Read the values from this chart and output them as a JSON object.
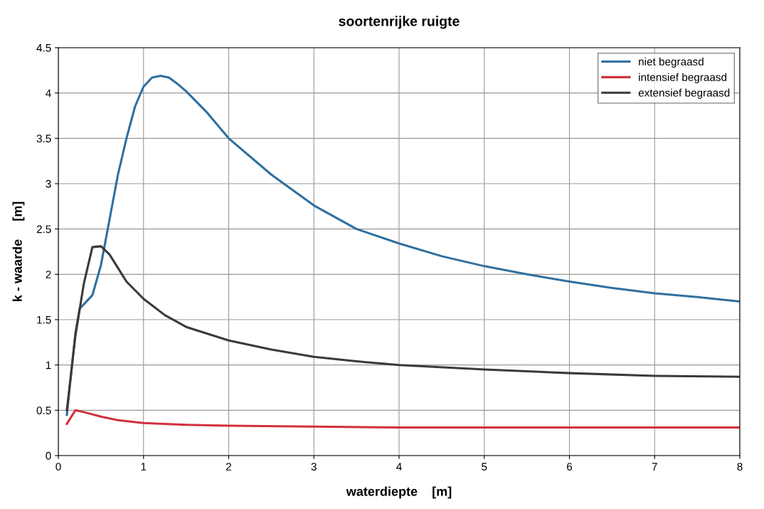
{
  "chart_data": {
    "type": "line",
    "title": "soortenrijke ruigte",
    "xlabel": "waterdiepte    [m]",
    "ylabel": "k - waarde     [m]",
    "xlim": [
      0,
      8
    ],
    "xticks": [
      0,
      1,
      2,
      3,
      4,
      5,
      6,
      7,
      8
    ],
    "ylim": [
      0,
      4.5
    ],
    "yticks": [
      0,
      0.5,
      1,
      1.5,
      2,
      2.5,
      3,
      3.5,
      4,
      4.5
    ],
    "grid": true,
    "legend": "top right",
    "series": [
      {
        "name": "niet begraasd",
        "color": "#2f6f9f",
        "x": [
          0.1,
          0.2,
          0.25,
          0.4,
          0.5,
          0.6,
          0.7,
          0.8,
          0.9,
          1.0,
          1.1,
          1.2,
          1.3,
          1.4,
          1.5,
          1.75,
          2,
          2.5,
          3,
          3.5,
          4,
          4.5,
          5,
          5.5,
          6,
          6.5,
          7,
          7.5,
          8
        ],
        "values": [
          0.45,
          1.35,
          1.62,
          1.77,
          2.1,
          2.6,
          3.1,
          3.5,
          3.85,
          4.07,
          4.17,
          4.19,
          4.17,
          4.1,
          4.02,
          3.78,
          3.5,
          3.1,
          2.76,
          2.5,
          2.34,
          2.2,
          2.09,
          2.0,
          1.92,
          1.85,
          1.79,
          1.75,
          1.7
        ]
      },
      {
        "name": "intensief begraasd",
        "color": "#d0313d",
        "x": [
          0.1,
          0.2,
          0.3,
          0.5,
          0.7,
          1,
          1.5,
          2,
          3,
          4,
          5,
          6,
          7,
          8
        ],
        "values": [
          0.35,
          0.5,
          0.48,
          0.43,
          0.39,
          0.36,
          0.34,
          0.33,
          0.32,
          0.31,
          0.31,
          0.31,
          0.31,
          0.31
        ]
      },
      {
        "name": "extensief begraasd",
        "color": "#3a3a3a",
        "x": [
          0.1,
          0.2,
          0.3,
          0.4,
          0.5,
          0.6,
          0.7,
          0.8,
          1,
          1.25,
          1.5,
          2,
          2.5,
          3,
          3.5,
          4,
          5,
          6,
          7,
          8
        ],
        "values": [
          0.5,
          1.32,
          1.9,
          2.3,
          2.31,
          2.22,
          2.07,
          1.92,
          1.73,
          1.55,
          1.42,
          1.27,
          1.17,
          1.09,
          1.04,
          1.0,
          0.95,
          0.91,
          0.88,
          0.87
        ]
      }
    ]
  }
}
